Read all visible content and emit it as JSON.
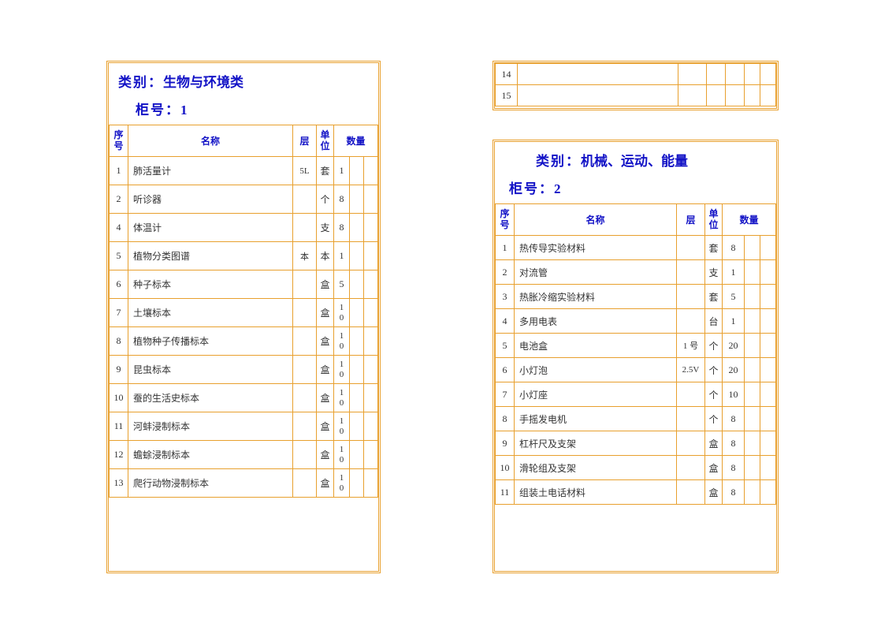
{
  "left": {
    "category_label": "类别：",
    "category_value": "生物与环境类",
    "cabinet_label": "柜号：",
    "cabinet_value": "1",
    "headers": {
      "seq": "序号",
      "name": "名称",
      "layer": "层",
      "unit": "单位",
      "qty": "数量"
    },
    "rows": [
      {
        "seq": "1",
        "name": "肺活量计",
        "layer": "5L",
        "unit": "套",
        "q1": "1",
        "q2": "",
        "q3": ""
      },
      {
        "seq": "2",
        "name": "听诊器",
        "layer": "",
        "unit": "个",
        "q1": "8",
        "q2": "",
        "q3": ""
      },
      {
        "seq": "4",
        "name": "体温计",
        "layer": "",
        "unit": "支",
        "q1": "8",
        "q2": "",
        "q3": ""
      },
      {
        "seq": "5",
        "name": "植物分类图谱",
        "layer": "本",
        "unit": "本",
        "q1": "1",
        "q2": "",
        "q3": ""
      },
      {
        "seq": "6",
        "name": "种子标本",
        "layer": "",
        "unit": "盒",
        "q1": "5",
        "q2": "",
        "q3": ""
      },
      {
        "seq": "7",
        "name": "土壤标本",
        "layer": "",
        "unit": "盒",
        "q1": "10",
        "q2": "",
        "q3": ""
      },
      {
        "seq": "8",
        "name": "植物种子传播标本",
        "layer": "",
        "unit": "盒",
        "q1": "10",
        "q2": "",
        "q3": ""
      },
      {
        "seq": "9",
        "name": "昆虫标本",
        "layer": "",
        "unit": "盒",
        "q1": "10",
        "q2": "",
        "q3": ""
      },
      {
        "seq": "10",
        "name": "蚕的生活史标本",
        "layer": "",
        "unit": "盒",
        "q1": "10",
        "q2": "",
        "q3": ""
      },
      {
        "seq": "11",
        "name": "河蚌浸制标本",
        "layer": "",
        "unit": "盒",
        "q1": "10",
        "q2": "",
        "q3": ""
      },
      {
        "seq": "12",
        "name": "蟾蜍浸制标本",
        "layer": "",
        "unit": "盒",
        "q1": "10",
        "q2": "",
        "q3": ""
      },
      {
        "seq": "13",
        "name": "爬行动物浸制标本",
        "layer": "",
        "unit": "盒",
        "q1": "10",
        "q2": "",
        "q3": ""
      }
    ]
  },
  "top_right": {
    "rows": [
      {
        "seq": "14"
      },
      {
        "seq": "15"
      }
    ]
  },
  "right": {
    "category_label": "类别：",
    "category_value": "机械、运动、能量",
    "cabinet_label": "柜号：",
    "cabinet_value": "2",
    "headers": {
      "seq": "序号",
      "name": "名称",
      "layer": "层",
      "unit": "单位",
      "qty": "数量"
    },
    "rows": [
      {
        "seq": "1",
        "name": "热传导实验材料",
        "layer": "",
        "unit": "套",
        "q1": "8",
        "q2": "",
        "q3": ""
      },
      {
        "seq": "2",
        "name": "对流管",
        "layer": "",
        "unit": "支",
        "q1": "1",
        "q2": "",
        "q3": ""
      },
      {
        "seq": "3",
        "name": "热胀冷缩实验材料",
        "layer": "",
        "unit": "套",
        "q1": "5",
        "q2": "",
        "q3": ""
      },
      {
        "seq": "4",
        "name": "多用电表",
        "layer": "",
        "unit": "台",
        "q1": "1",
        "q2": "",
        "q3": ""
      },
      {
        "seq": "5",
        "name": "电池盒",
        "layer": "1 号",
        "unit": "个",
        "q1": "20",
        "q2": "",
        "q3": ""
      },
      {
        "seq": "6",
        "name": "小灯泡",
        "layer": "2.5V",
        "unit": "个",
        "q1": "20",
        "q2": "",
        "q3": ""
      },
      {
        "seq": "7",
        "name": "小灯座",
        "layer": "",
        "unit": "个",
        "q1": "10",
        "q2": "",
        "q3": ""
      },
      {
        "seq": "8",
        "name": "手摇发电机",
        "layer": "",
        "unit": "个",
        "q1": "8",
        "q2": "",
        "q3": ""
      },
      {
        "seq": "9",
        "name": "杠杆尺及支架",
        "layer": "",
        "unit": "盒",
        "q1": "8",
        "q2": "",
        "q3": ""
      },
      {
        "seq": "10",
        "name": "滑轮组及支架",
        "layer": "",
        "unit": "盒",
        "q1": "8",
        "q2": "",
        "q3": ""
      },
      {
        "seq": "11",
        "name": "组装土电话材料",
        "layer": "",
        "unit": "盒",
        "q1": "8",
        "q2": "",
        "q3": ""
      }
    ]
  },
  "colors": {
    "border": "#e8a02e",
    "header_text": "#1212c6",
    "body_text": "#333333",
    "background": "#ffffff"
  }
}
